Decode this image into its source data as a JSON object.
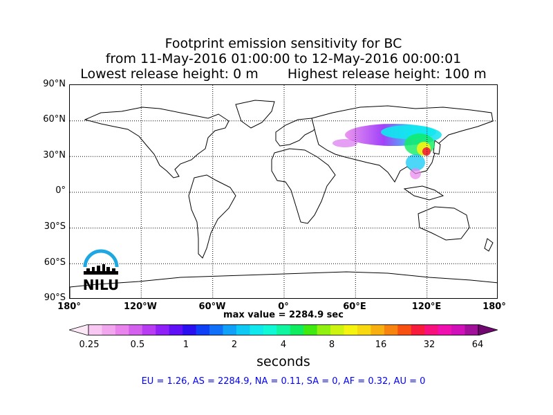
{
  "title": {
    "line1": "Footprint emission sensitivity for BC",
    "line2": "from 11-May-2016 01:00:00 to 12-May-2016 00:00:01",
    "line3_left": "Lowest release height: 0 m",
    "line3_right": "Highest release height: 100 m"
  },
  "axes": {
    "lat_labels": [
      "90°N",
      "60°N",
      "30°N",
      "0°",
      "30°S",
      "60°S",
      "90°S"
    ],
    "lon_labels": [
      "180°",
      "120°W",
      "60°W",
      "0°",
      "60°E",
      "120°E",
      "180°"
    ],
    "gridlines": "dotted"
  },
  "max_value": "max value = 2284.9 sec",
  "colorbar": {
    "tick_labels": [
      "0.25",
      "0.5",
      "1",
      "2",
      "4",
      "8",
      "16",
      "32",
      "64"
    ],
    "units": "seconds",
    "colors": [
      "#fde8f8",
      "#f8c8f2",
      "#f2a6ee",
      "#e884ec",
      "#d460ee",
      "#b83cf2",
      "#9020f8",
      "#6010f6",
      "#2a10f0",
      "#1040f6",
      "#1070f8",
      "#10a0f8",
      "#10c8f4",
      "#10e8ee",
      "#10f8d6",
      "#10f6a0",
      "#10ec60",
      "#40ea10",
      "#90f010",
      "#ccf410",
      "#f4f410",
      "#f8d810",
      "#f8b010",
      "#f88410",
      "#f85010",
      "#f81c3c",
      "#f8107c",
      "#f010b0",
      "#d010b8",
      "#a01098",
      "#700870"
    ]
  },
  "stats": "EU = 1.26,  AS = 2284.9,  NA = 0.11,  SA = 0,  AF = 0.32,  AU = 0",
  "logo": {
    "text": "NILU",
    "arc_color": "#1ea7e1"
  }
}
